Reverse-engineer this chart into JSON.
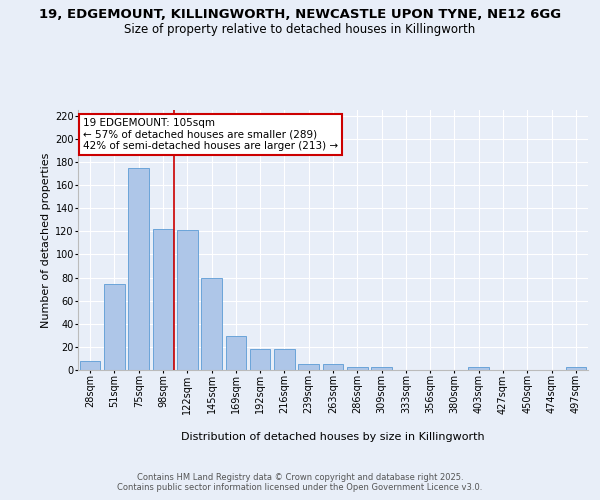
{
  "title_line1": "19, EDGEMOUNT, KILLINGWORTH, NEWCASTLE UPON TYNE, NE12 6GG",
  "title_line2": "Size of property relative to detached houses in Killingworth",
  "xlabel": "Distribution of detached houses by size in Killingworth",
  "ylabel": "Number of detached properties",
  "categories": [
    "28sqm",
    "51sqm",
    "75sqm",
    "98sqm",
    "122sqm",
    "145sqm",
    "169sqm",
    "192sqm",
    "216sqm",
    "239sqm",
    "263sqm",
    "286sqm",
    "309sqm",
    "333sqm",
    "356sqm",
    "380sqm",
    "403sqm",
    "427sqm",
    "450sqm",
    "474sqm",
    "497sqm"
  ],
  "values": [
    8,
    74,
    175,
    122,
    121,
    80,
    29,
    18,
    18,
    5,
    5,
    3,
    3,
    0,
    0,
    0,
    3,
    0,
    0,
    0,
    3
  ],
  "bar_color": "#aec6e8",
  "bar_edge_color": "#5b9bd5",
  "annotation_line1": "19 EDGEMOUNT: 105sqm",
  "annotation_line2": "← 57% of detached houses are smaller (289)",
  "annotation_line3": "42% of semi-detached houses are larger (213) →",
  "vline_color": "#cc0000",
  "annotation_box_color": "#cc0000",
  "ylim": [
    0,
    225
  ],
  "yticks": [
    0,
    20,
    40,
    60,
    80,
    100,
    120,
    140,
    160,
    180,
    200,
    220
  ],
  "background_color": "#e8eef8",
  "plot_bg_color": "#e8eef8",
  "footer_text": "Contains HM Land Registry data © Crown copyright and database right 2025.\nContains public sector information licensed under the Open Government Licence v3.0.",
  "title_fontsize": 9.5,
  "subtitle_fontsize": 8.5,
  "axis_label_fontsize": 8,
  "tick_fontsize": 7,
  "footer_fontsize": 6,
  "annot_fontsize": 7.5
}
